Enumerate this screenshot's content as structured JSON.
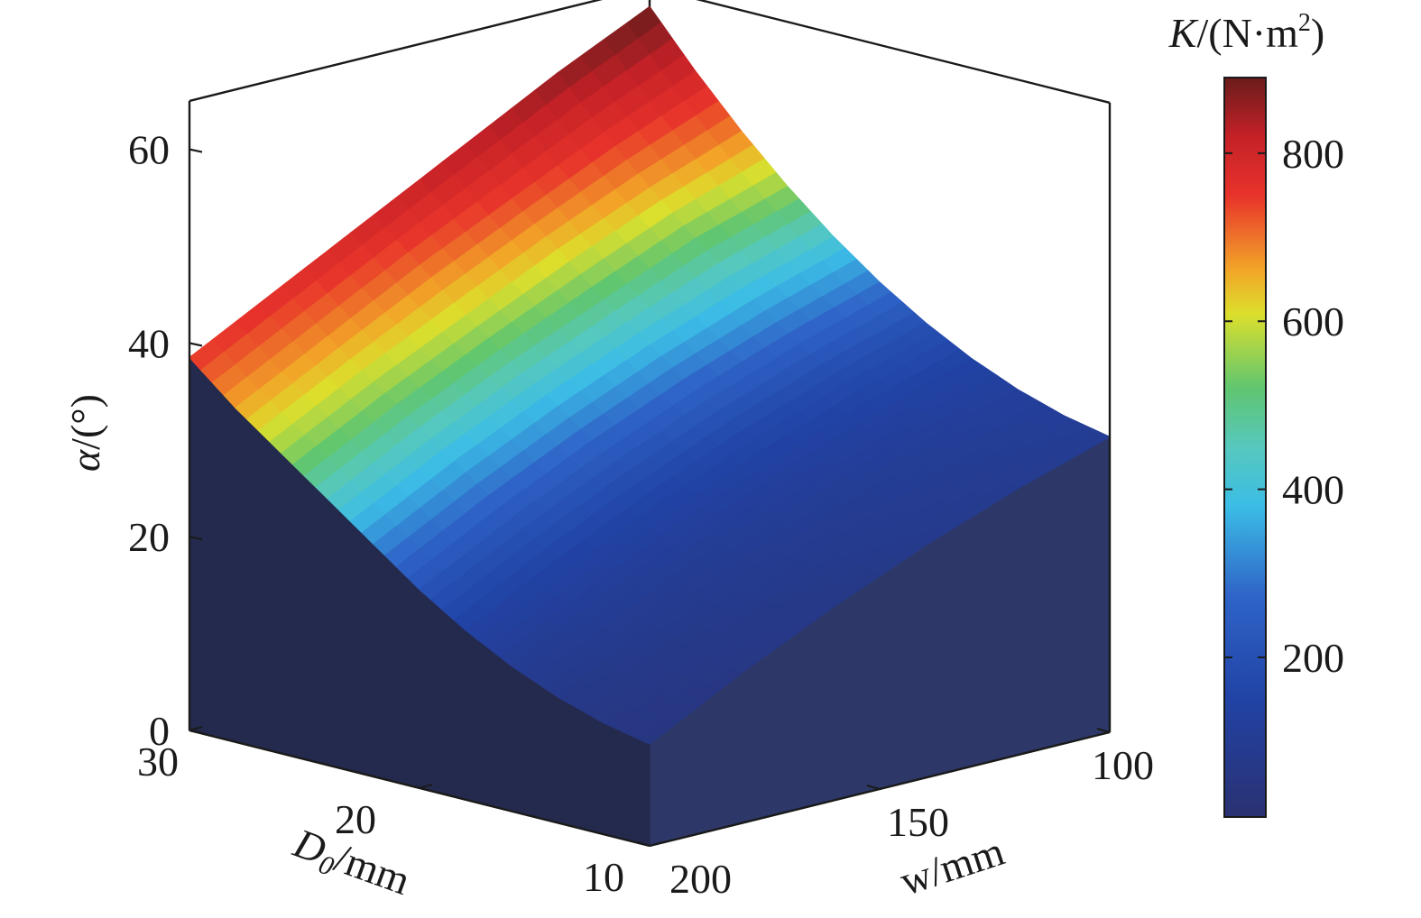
{
  "chart_data": {
    "type": "surface3d",
    "title": "",
    "x_axis": {
      "label_main": "w",
      "label_unit": "/mm",
      "range": [
        100,
        200
      ],
      "ticks": [
        100,
        150,
        200
      ]
    },
    "y_axis": {
      "label_main": "D",
      "label_sub": "0",
      "label_unit": "/mm",
      "range": [
        10,
        30
      ],
      "ticks": [
        10,
        20,
        30
      ]
    },
    "z_axis": {
      "label_main": "α",
      "label_unit": "/(°)",
      "range": [
        0,
        65
      ],
      "ticks": [
        0,
        20,
        40,
        60
      ]
    },
    "colorbar": {
      "label_main": "K",
      "label_unit_pre": "/(N·m",
      "label_sup": "2",
      "label_unit_post": ")",
      "range": [
        10,
        890
      ],
      "ticks": [
        200,
        400,
        600,
        800
      ],
      "colormap": "jet"
    },
    "w_values": [
      100,
      120,
      140,
      160,
      180,
      200
    ],
    "d0_values": [
      10,
      12,
      14,
      16,
      18,
      20,
      22,
      24,
      26,
      28,
      30
    ],
    "alpha": [
      [
        30.5,
        31.5,
        33.0,
        35.0,
        37.5,
        40.5,
        44.0,
        48.0,
        52.5,
        57.5,
        63.0
      ],
      [
        27.5,
        28.5,
        30.0,
        32.0,
        34.5,
        37.5,
        41.0,
        45.0,
        49.0,
        53.5,
        58.5
      ],
      [
        24.0,
        25.0,
        26.5,
        28.5,
        31.0,
        34.0,
        37.5,
        41.0,
        45.0,
        49.0,
        53.5
      ],
      [
        20.0,
        21.0,
        22.5,
        24.5,
        27.0,
        30.0,
        33.5,
        37.0,
        40.5,
        44.5,
        48.5
      ],
      [
        15.5,
        16.5,
        18.0,
        20.0,
        22.5,
        25.5,
        29.0,
        32.5,
        36.0,
        39.5,
        43.5
      ],
      [
        10.5,
        11.5,
        13.0,
        15.0,
        17.5,
        20.5,
        24.0,
        27.5,
        31.0,
        34.5,
        38.5
      ]
    ],
    "K": [
      [
        100,
        110,
        125,
        150,
        200,
        300,
        420,
        560,
        690,
        800,
        890
      ],
      [
        90,
        100,
        115,
        140,
        185,
        280,
        400,
        530,
        660,
        770,
        860
      ],
      [
        80,
        90,
        105,
        130,
        170,
        260,
        380,
        500,
        630,
        740,
        830
      ],
      [
        70,
        80,
        95,
        120,
        160,
        240,
        360,
        480,
        600,
        710,
        800
      ],
      [
        60,
        70,
        85,
        110,
        150,
        225,
        340,
        460,
        580,
        680,
        770
      ],
      [
        50,
        60,
        75,
        100,
        140,
        210,
        320,
        440,
        560,
        660,
        750
      ]
    ],
    "colors": {
      "base_low": "#242a4d",
      "base_high": "#2d3869",
      "frame": "#1a1a1a"
    }
  }
}
